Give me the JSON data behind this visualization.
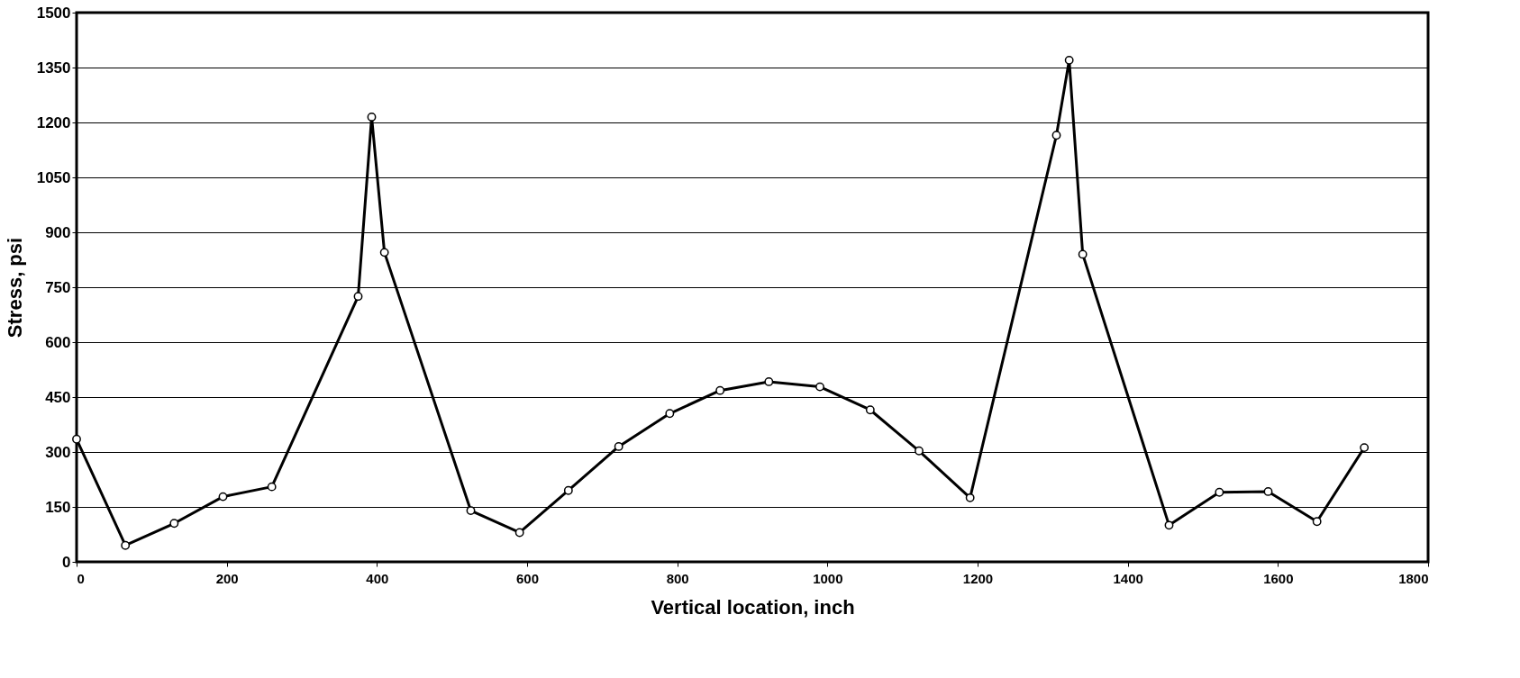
{
  "chart_data": {
    "type": "line",
    "xlabel": "Vertical location, inch",
    "ylabel": "Stress, psi",
    "x": [
      0,
      65,
      130,
      195,
      260,
      375,
      393,
      410,
      525,
      590,
      655,
      722,
      790,
      857,
      922,
      990,
      1057,
      1122,
      1190,
      1305,
      1322,
      1340,
      1455,
      1522,
      1587,
      1652,
      1715
    ],
    "series": [
      {
        "color": "#000000",
        "values": [
          335,
          45,
          105,
          178,
          205,
          725,
          1215,
          845,
          140,
          80,
          195,
          315,
          405,
          468,
          492,
          478,
          415,
          303,
          175,
          1165,
          1370,
          840,
          100,
          190,
          192,
          110,
          312
        ]
      }
    ],
    "xlim": [
      0,
      1800
    ],
    "xticks": [
      0,
      200,
      400,
      600,
      800,
      1000,
      1200,
      1400,
      1600,
      1800
    ],
    "ylim": [
      0,
      1500
    ],
    "yticks": [
      0,
      150,
      300,
      450,
      600,
      750,
      900,
      1050,
      1200,
      1350,
      1500
    ],
    "grid": "y",
    "marker": "circle",
    "line_style": "solid"
  }
}
